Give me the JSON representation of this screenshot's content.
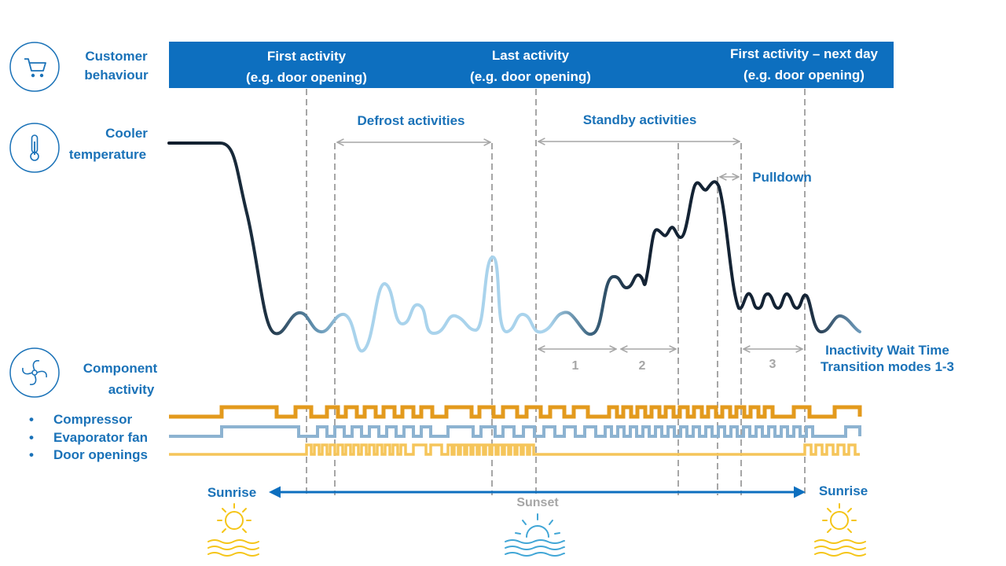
{
  "header": {
    "col1_line1": "First activity",
    "col1_line2": "(e.g. door opening)",
    "col2_line1": "Last activity",
    "col2_line2": "(e.g. door opening)",
    "col3_line1": "First activity – next day",
    "col3_line2": "(e.g. door opening)"
  },
  "rows": {
    "customer_line1": "Customer",
    "customer_line2": "behaviour",
    "cooler_line1": "Cooler",
    "cooler_line2": "temperature",
    "component_line1": "Component",
    "component_line2": "activity"
  },
  "annotations": {
    "defrost": "Defrost activities",
    "standby": "Standby activities",
    "pulldown": "Pulldown",
    "mode1": "1",
    "mode2": "2",
    "mode3": "3",
    "inactivity_line1": "Inactivity Wait Time",
    "inactivity_line2": "Transition modes 1-3"
  },
  "legend": {
    "bullet": "•",
    "compressor": "Compressor",
    "evaporator": "Evaporator fan",
    "door": "Door openings"
  },
  "timeline": {
    "sunrise_left": "Sunrise",
    "sunset": "Sunset",
    "sunrise_right": "Sunrise"
  },
  "colors": {
    "brand_blue": "#0d6fbf",
    "label_blue": "#1a72b8",
    "compressor": "#e39a1d",
    "evaporator": "#8db3d1",
    "door": "#f5c55a",
    "dashed": "#a6a6a6",
    "sun": "#f5c518",
    "sunset_sun": "#41a6d6"
  },
  "icons": {
    "customer": "cart-icon",
    "cooler": "thermometer-icon",
    "component": "fan-icon"
  }
}
